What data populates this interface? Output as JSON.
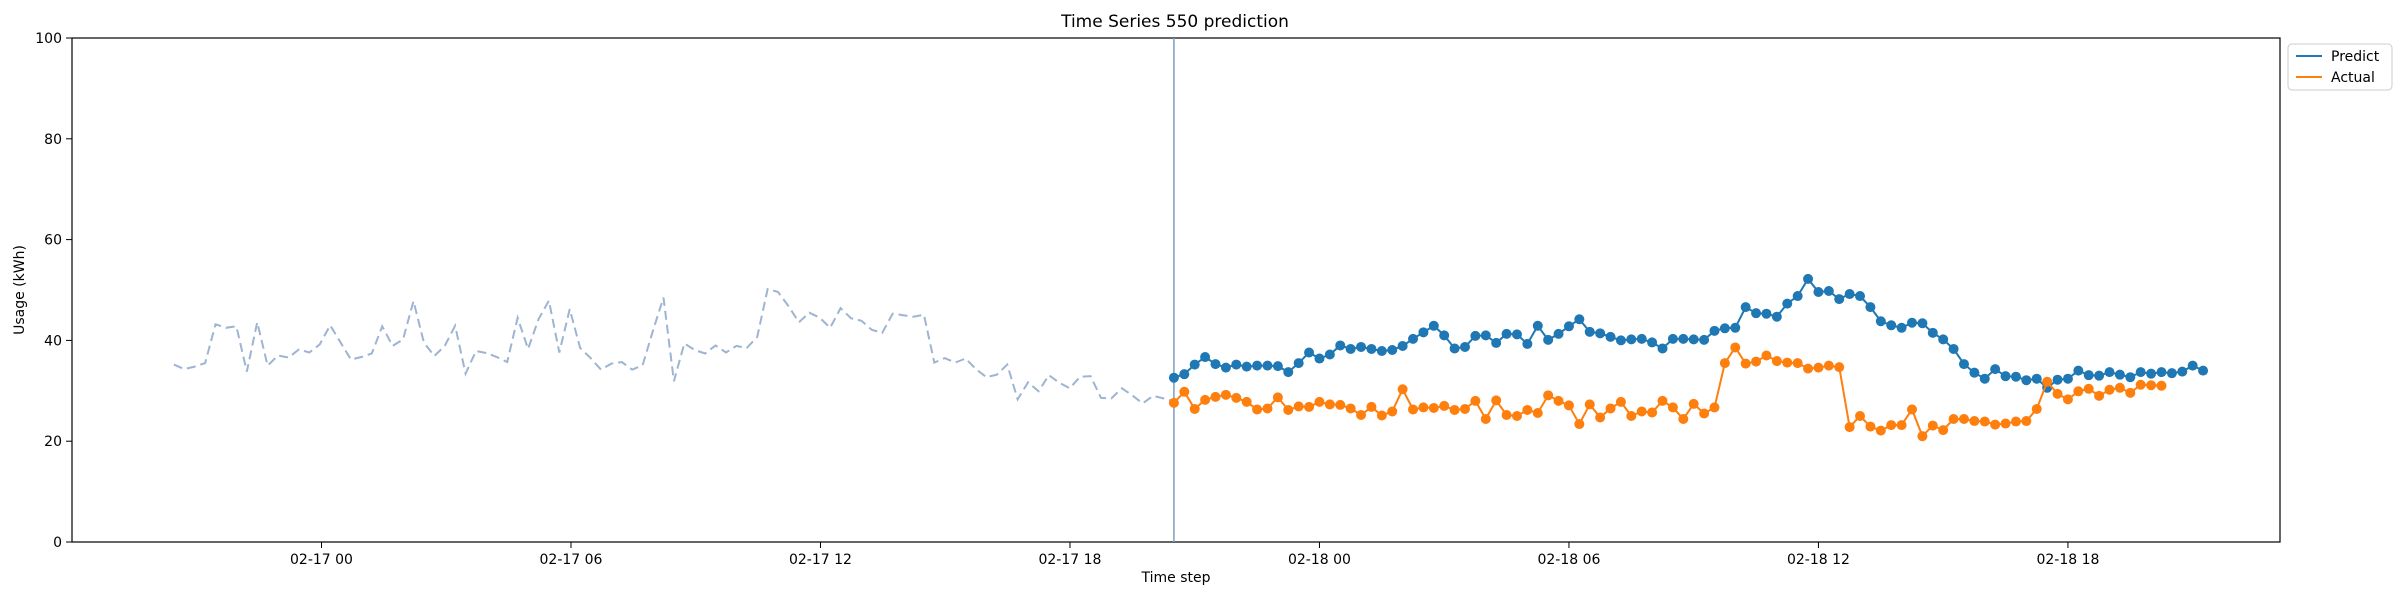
{
  "chart_data": {
    "type": "line",
    "title": "Time Series 550 prediction",
    "xlabel": "Time step",
    "ylabel": "Usage (kWh)",
    "ylim": [
      0,
      100
    ],
    "yticks": [
      0,
      20,
      40,
      60,
      80,
      100
    ],
    "x_axis_unit": "hours since 2023-02-16 18:00",
    "xticks": [
      {
        "value": 6,
        "label": "02-17 00"
      },
      {
        "value": 12,
        "label": "02-17 06"
      },
      {
        "value": 18,
        "label": "02-17 12"
      },
      {
        "value": 24,
        "label": "02-17 18"
      },
      {
        "value": 30,
        "label": "02-18 00"
      },
      {
        "value": 36,
        "label": "02-18 06"
      },
      {
        "value": 42,
        "label": "02-18 12"
      },
      {
        "value": 48,
        "label": "02-18 18"
      }
    ],
    "xlim": [
      0.0,
      53.1
    ],
    "history_start": 2.45,
    "forecast_start": 26.5,
    "step_hours": 0.25,
    "vline_color": "#7a9ec4",
    "grid": false,
    "legend_placement": "top-right",
    "history": {
      "color": "#9db4d2",
      "style": "dashed",
      "values": [
        35.2,
        34.3,
        34.8,
        35.5,
        43.2,
        42.5,
        42.8,
        33.8,
        43.6,
        35.0,
        37.0,
        36.6,
        38.2,
        37.6,
        39.2,
        43.0,
        39.6,
        36.2,
        36.7,
        37.4,
        42.8,
        38.9,
        40.2,
        47.8,
        39.6,
        36.9,
        38.9,
        42.9,
        33.4,
        37.9,
        37.5,
        36.7,
        35.7,
        44.5,
        38.3,
        44.2,
        47.9,
        37.6,
        46.2,
        38.5,
        36.5,
        34.2,
        35.4,
        35.7,
        34.2,
        35.1,
        42.0,
        48.5,
        31.9,
        39.4,
        38.1,
        37.4,
        39.0,
        37.6,
        38.9,
        38.5,
        40.7,
        50.2,
        49.6,
        46.8,
        43.6,
        45.5,
        44.5,
        42.5,
        46.4,
        44.4,
        43.9,
        42.1,
        41.5,
        45.3,
        45.0,
        44.7,
        45.1,
        35.6,
        36.5,
        35.6,
        36.4,
        34.3,
        32.7,
        33.2,
        35.2,
        28.3,
        31.7,
        29.9,
        33.1,
        31.6,
        30.5,
        32.8,
        32.9,
        28.6,
        28.5,
        30.5,
        29.1,
        27.5,
        29.0,
        28.5,
        27.9
      ]
    },
    "series": [
      {
        "name": "Predict",
        "color": "#1f77b4",
        "values": [
          32.6,
          33.3,
          35.2,
          36.7,
          35.3,
          34.6,
          35.2,
          34.8,
          35.0,
          35.0,
          34.9,
          33.7,
          35.5,
          37.6,
          36.4,
          37.2,
          39.0,
          38.3,
          38.7,
          38.3,
          37.9,
          38.1,
          38.9,
          40.3,
          41.6,
          42.9,
          41.0,
          38.4,
          38.7,
          40.9,
          41.0,
          39.5,
          41.3,
          41.2,
          39.3,
          42.9,
          40.1,
          41.3,
          42.8,
          44.2,
          41.7,
          41.4,
          40.7,
          40.0,
          40.2,
          40.3,
          39.6,
          38.4,
          40.3,
          40.3,
          40.2,
          40.1,
          41.9,
          42.4,
          42.5,
          46.6,
          45.4,
          45.3,
          44.7,
          47.3,
          48.8,
          52.2,
          49.6,
          49.8,
          48.2,
          49.2,
          48.8,
          46.6,
          43.8,
          43.0,
          42.5,
          43.5,
          43.4,
          41.5,
          40.2,
          38.3,
          35.3,
          33.6,
          32.4,
          34.3,
          32.9,
          32.8,
          32.1,
          32.4,
          30.6,
          32.2,
          32.4,
          34.0,
          33.1,
          33.0,
          33.7,
          33.2,
          32.7,
          33.7,
          33.4,
          33.7,
          33.5,
          33.8,
          35.0,
          34.0
        ]
      },
      {
        "name": "Actual",
        "color": "#ff7f0e",
        "values": [
          27.6,
          29.8,
          26.4,
          28.2,
          28.8,
          29.2,
          28.6,
          27.8,
          26.3,
          26.5,
          28.7,
          26.2,
          26.9,
          26.8,
          27.8,
          27.3,
          27.2,
          26.5,
          25.2,
          26.8,
          25.1,
          25.9,
          30.3,
          26.3,
          26.7,
          26.6,
          27.0,
          26.2,
          26.4,
          28.0,
          24.4,
          28.1,
          25.2,
          25.0,
          26.2,
          25.6,
          29.1,
          28.0,
          27.1,
          23.4,
          27.3,
          24.7,
          26.5,
          27.8,
          25.0,
          25.9,
          25.7,
          28.0,
          26.7,
          24.4,
          27.4,
          25.5,
          26.7,
          35.5,
          38.6,
          35.4,
          35.8,
          37.0,
          35.9,
          35.6,
          35.5,
          34.4,
          34.6,
          35.0,
          34.7,
          22.8,
          25.0,
          22.9,
          22.1,
          23.2,
          23.2,
          26.3,
          21.0,
          23.1,
          22.2,
          24.4,
          24.4,
          24.0,
          23.9,
          23.3,
          23.5,
          23.9,
          24.0,
          26.4,
          31.8,
          29.4,
          28.3,
          29.9,
          30.4,
          29.0,
          30.2,
          30.6,
          29.6,
          31.2,
          31.1,
          31.0
        ]
      }
    ]
  }
}
